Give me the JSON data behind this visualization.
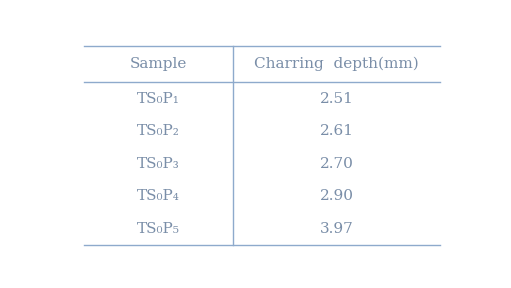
{
  "col_headers": [
    "Sample",
    "Charring  depth(mm)"
  ],
  "rows": [
    [
      "TS₀P₁",
      "2.51"
    ],
    [
      "TS₀P₂",
      "2.61"
    ],
    [
      "TS₀P₃",
      "2.70"
    ],
    [
      "TS₀P₄",
      "2.90"
    ],
    [
      "TS₀P₅",
      "3.97"
    ]
  ],
  "text_color": "#7a8ea8",
  "line_color": "#8eaacc",
  "bg_color": "#ffffff",
  "font_size": 11,
  "header_font_size": 11
}
